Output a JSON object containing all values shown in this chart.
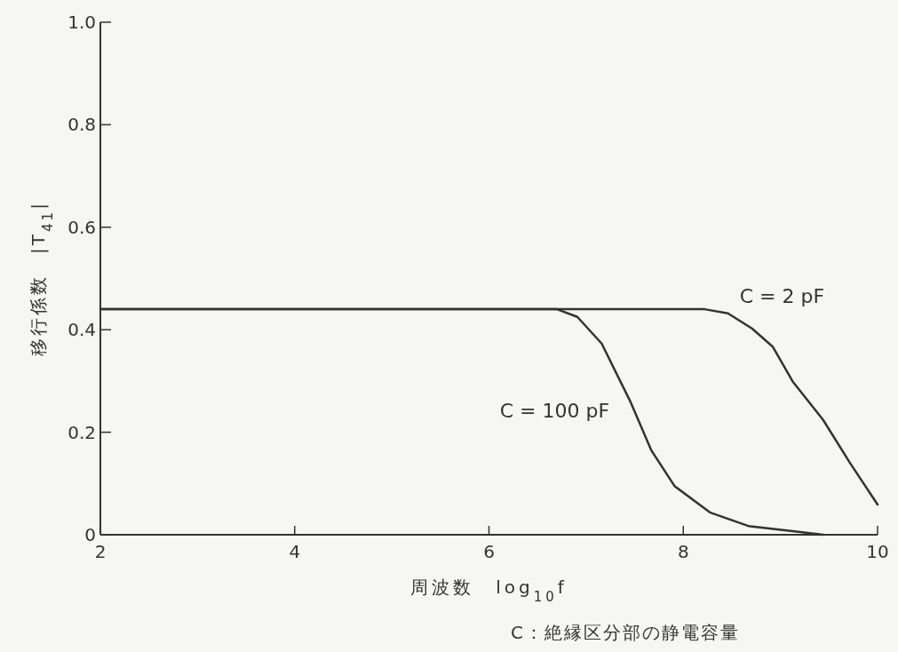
{
  "chart_data": {
    "type": "line",
    "xlabel": "周波数　log$_{10}$f",
    "ylabel": "移行係数　|T$_{41}$|",
    "xlim": [
      2,
      10
    ],
    "xticks": [
      2,
      4,
      6,
      8,
      10
    ],
    "ylim": [
      0,
      1
    ],
    "yticks": [
      0,
      0.2,
      0.4,
      0.6,
      0.8,
      {
        "value": 1,
        "label": "1.0"
      }
    ],
    "grid": false,
    "line_style": "solid",
    "series": [
      {
        "name": "C = 100 pF",
        "color": "#333333",
        "x": [
          2,
          6.7,
          6.91,
          7.16,
          7.46,
          7.67,
          7.91,
          8.28,
          8.67,
          9.13,
          9.44
        ],
        "values": [
          0.44,
          0.44,
          0.425,
          0.373,
          0.258,
          0.165,
          0.095,
          0.043,
          0.017,
          0.007,
          0
        ]
      },
      {
        "name": "C = 2 pF",
        "color": "#333333",
        "x": [
          2,
          8.22,
          8.46,
          8.71,
          8.92,
          9.13,
          9.44,
          9.71,
          10
        ],
        "values": [
          0.44,
          0.44,
          0.432,
          0.402,
          0.367,
          0.298,
          0.224,
          0.142,
          0.059
        ]
      }
    ],
    "annotations": [
      "C：絶縁区分部の静電容量"
    ]
  }
}
